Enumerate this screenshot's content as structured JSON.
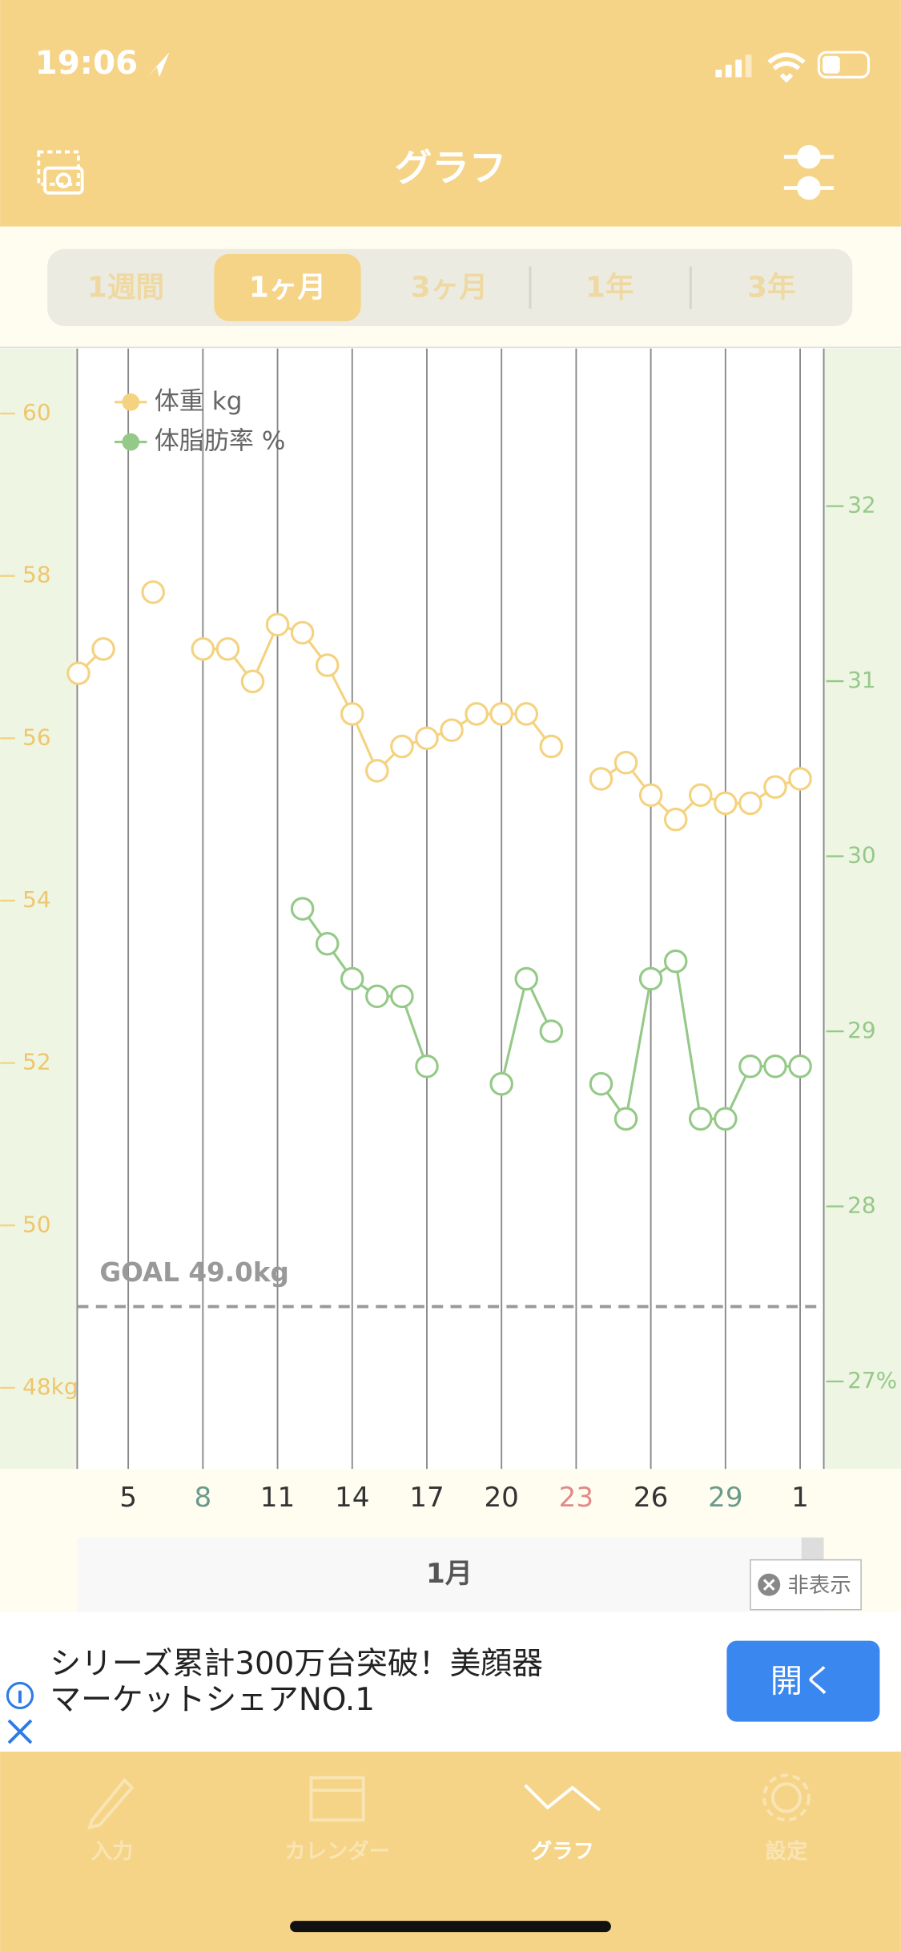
{
  "status_bar": {
    "time": "19:06"
  },
  "nav": {
    "title": "グラフ"
  },
  "tabs": {
    "items": [
      "1週間",
      "1ヶ月",
      "3ヶ月",
      "1年",
      "3年"
    ],
    "selected": 1
  },
  "chart_data": {
    "type": "line",
    "categories": [
      null,
      null,
      "5",
      null,
      null,
      "8",
      null,
      null,
      "11",
      null,
      null,
      "14",
      null,
      null,
      "17",
      null,
      null,
      "20",
      null,
      null,
      "23",
      null,
      null,
      "26",
      null,
      null,
      "29",
      null,
      null,
      "1"
    ],
    "category_colors": [
      null,
      null,
      "#333333",
      null,
      null,
      "#6a9a8c",
      null,
      null,
      "#333333",
      null,
      null,
      "#333333",
      null,
      null,
      "#333333",
      null,
      null,
      "#333333",
      null,
      null,
      "#e08a8a",
      null,
      null,
      "#333333",
      null,
      null,
      "#6a9a8c",
      null,
      null,
      "#333333"
    ],
    "series": [
      {
        "name": "体重 kg",
        "color": "#f4d27f",
        "axis": "y",
        "values": [
          56.8,
          57.1,
          null,
          57.8,
          null,
          57.1,
          57.1,
          56.7,
          57.4,
          57.3,
          56.9,
          56.3,
          55.6,
          55.9,
          56.0,
          56.1,
          56.3,
          56.3,
          56.3,
          55.9,
          null,
          55.5,
          55.7,
          55.3,
          55.0,
          55.3,
          55.2,
          55.2,
          55.4,
          55.5
        ]
      },
      {
        "name": "体脂肪率 %",
        "color": "#94c987",
        "axis": "y2",
        "values": [
          null,
          null,
          null,
          null,
          null,
          null,
          null,
          null,
          null,
          29.7,
          29.5,
          29.3,
          29.2,
          29.2,
          28.8,
          null,
          null,
          28.7,
          29.3,
          29.0,
          null,
          28.7,
          28.5,
          29.3,
          29.4,
          28.5,
          28.5,
          28.8,
          28.8,
          28.8
        ]
      }
    ],
    "ylim": [
      47,
      60.8
    ],
    "yticks": [
      {
        "value": 48,
        "label": "48kg"
      },
      50,
      52,
      54,
      56,
      58,
      60
    ],
    "y2lim": [
      26.5,
      32.9
    ],
    "y2ticks": [
      {
        "value": 27,
        "label": "27%"
      },
      28,
      29,
      30,
      31,
      32
    ],
    "goal": {
      "value": 49,
      "label": "GOAL 49.0kg"
    },
    "month_label": "1月"
  },
  "hide_button": "非表示",
  "ad": {
    "lines": [
      "シリーズ累計300万台突破！美顔器",
      "マーケットシェアNO.1"
    ],
    "button": "開く"
  },
  "tab_bar": {
    "items": [
      "入力",
      "カレンダー",
      "グラフ",
      "設定"
    ],
    "selected": 2
  }
}
